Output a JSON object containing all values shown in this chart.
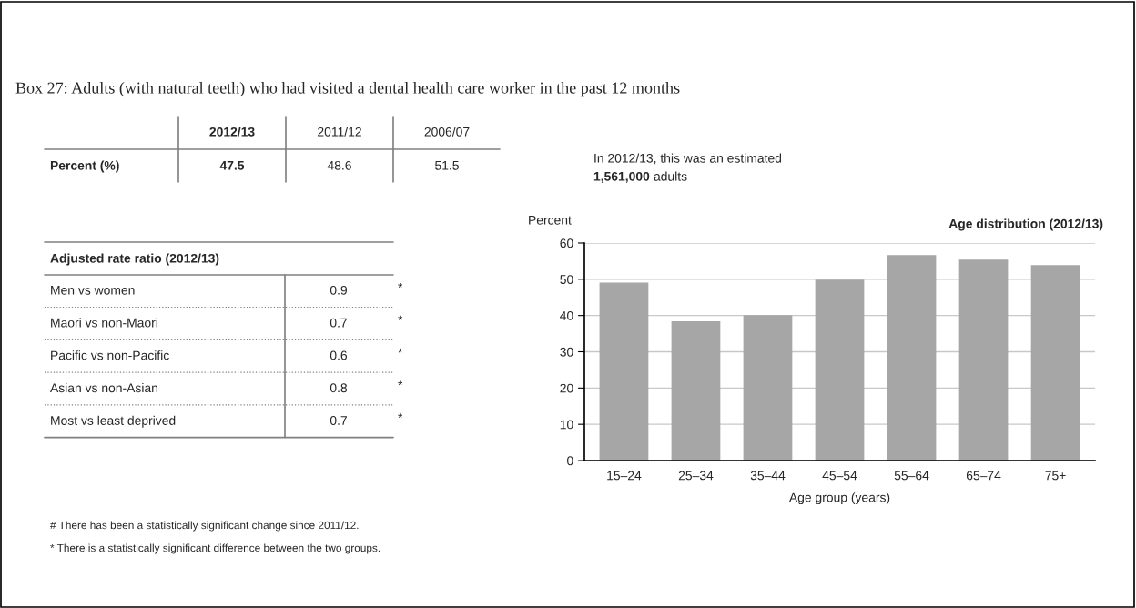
{
  "chart_data": [
    {
      "type": "other",
      "title": "Box 27: Adults (with natural teeth) who had visited a dental health care worker in the past 12 months",
      "annotations": [
        "# There has been a statistically significant change since 2011/12.",
        "* There is a statistically significant difference between the two groups."
      ]
    },
    {
      "type": "other",
      "ylabel": "Percent (%)",
      "categories": [
        "2012/13",
        "2011/12",
        "2006/07"
      ],
      "values": [
        47.5,
        48.6,
        51.5
      ],
      "data_labels": true
    },
    {
      "type": "other",
      "annotations": [
        "In 2012/13, this was an estimated",
        "1,561,000",
        "adults"
      ]
    },
    {
      "type": "other",
      "title": "Adjusted rate ratio (2012/13)",
      "categories": [
        "Men vs women",
        "Māori vs non-Māori",
        "Pacific vs non-Pacific",
        "Asian vs non-Asian",
        "Most vs least deprived"
      ],
      "values": [
        0.9,
        0.7,
        0.6,
        0.8,
        0.7
      ],
      "data_labels": true,
      "annotations": [
        "*",
        "*",
        "*",
        "*",
        "*"
      ]
    },
    {
      "type": "bar",
      "title": "Age distribution (2012/13)",
      "ylabel": "Percent",
      "xlabel": "Age group (years)",
      "categories": [
        "15–24",
        "25–34",
        "35–44",
        "45–54",
        "55–64",
        "65–74",
        "75+"
      ],
      "values": [
        49.1,
        38.4,
        40.1,
        49.9,
        56.7,
        55.4,
        53.9
      ],
      "color": "#a6a6a6",
      "ylim": [
        0,
        60
      ],
      "yticks": [
        0,
        10,
        20,
        30,
        40,
        50,
        60
      ],
      "grid": "y"
    }
  ]
}
